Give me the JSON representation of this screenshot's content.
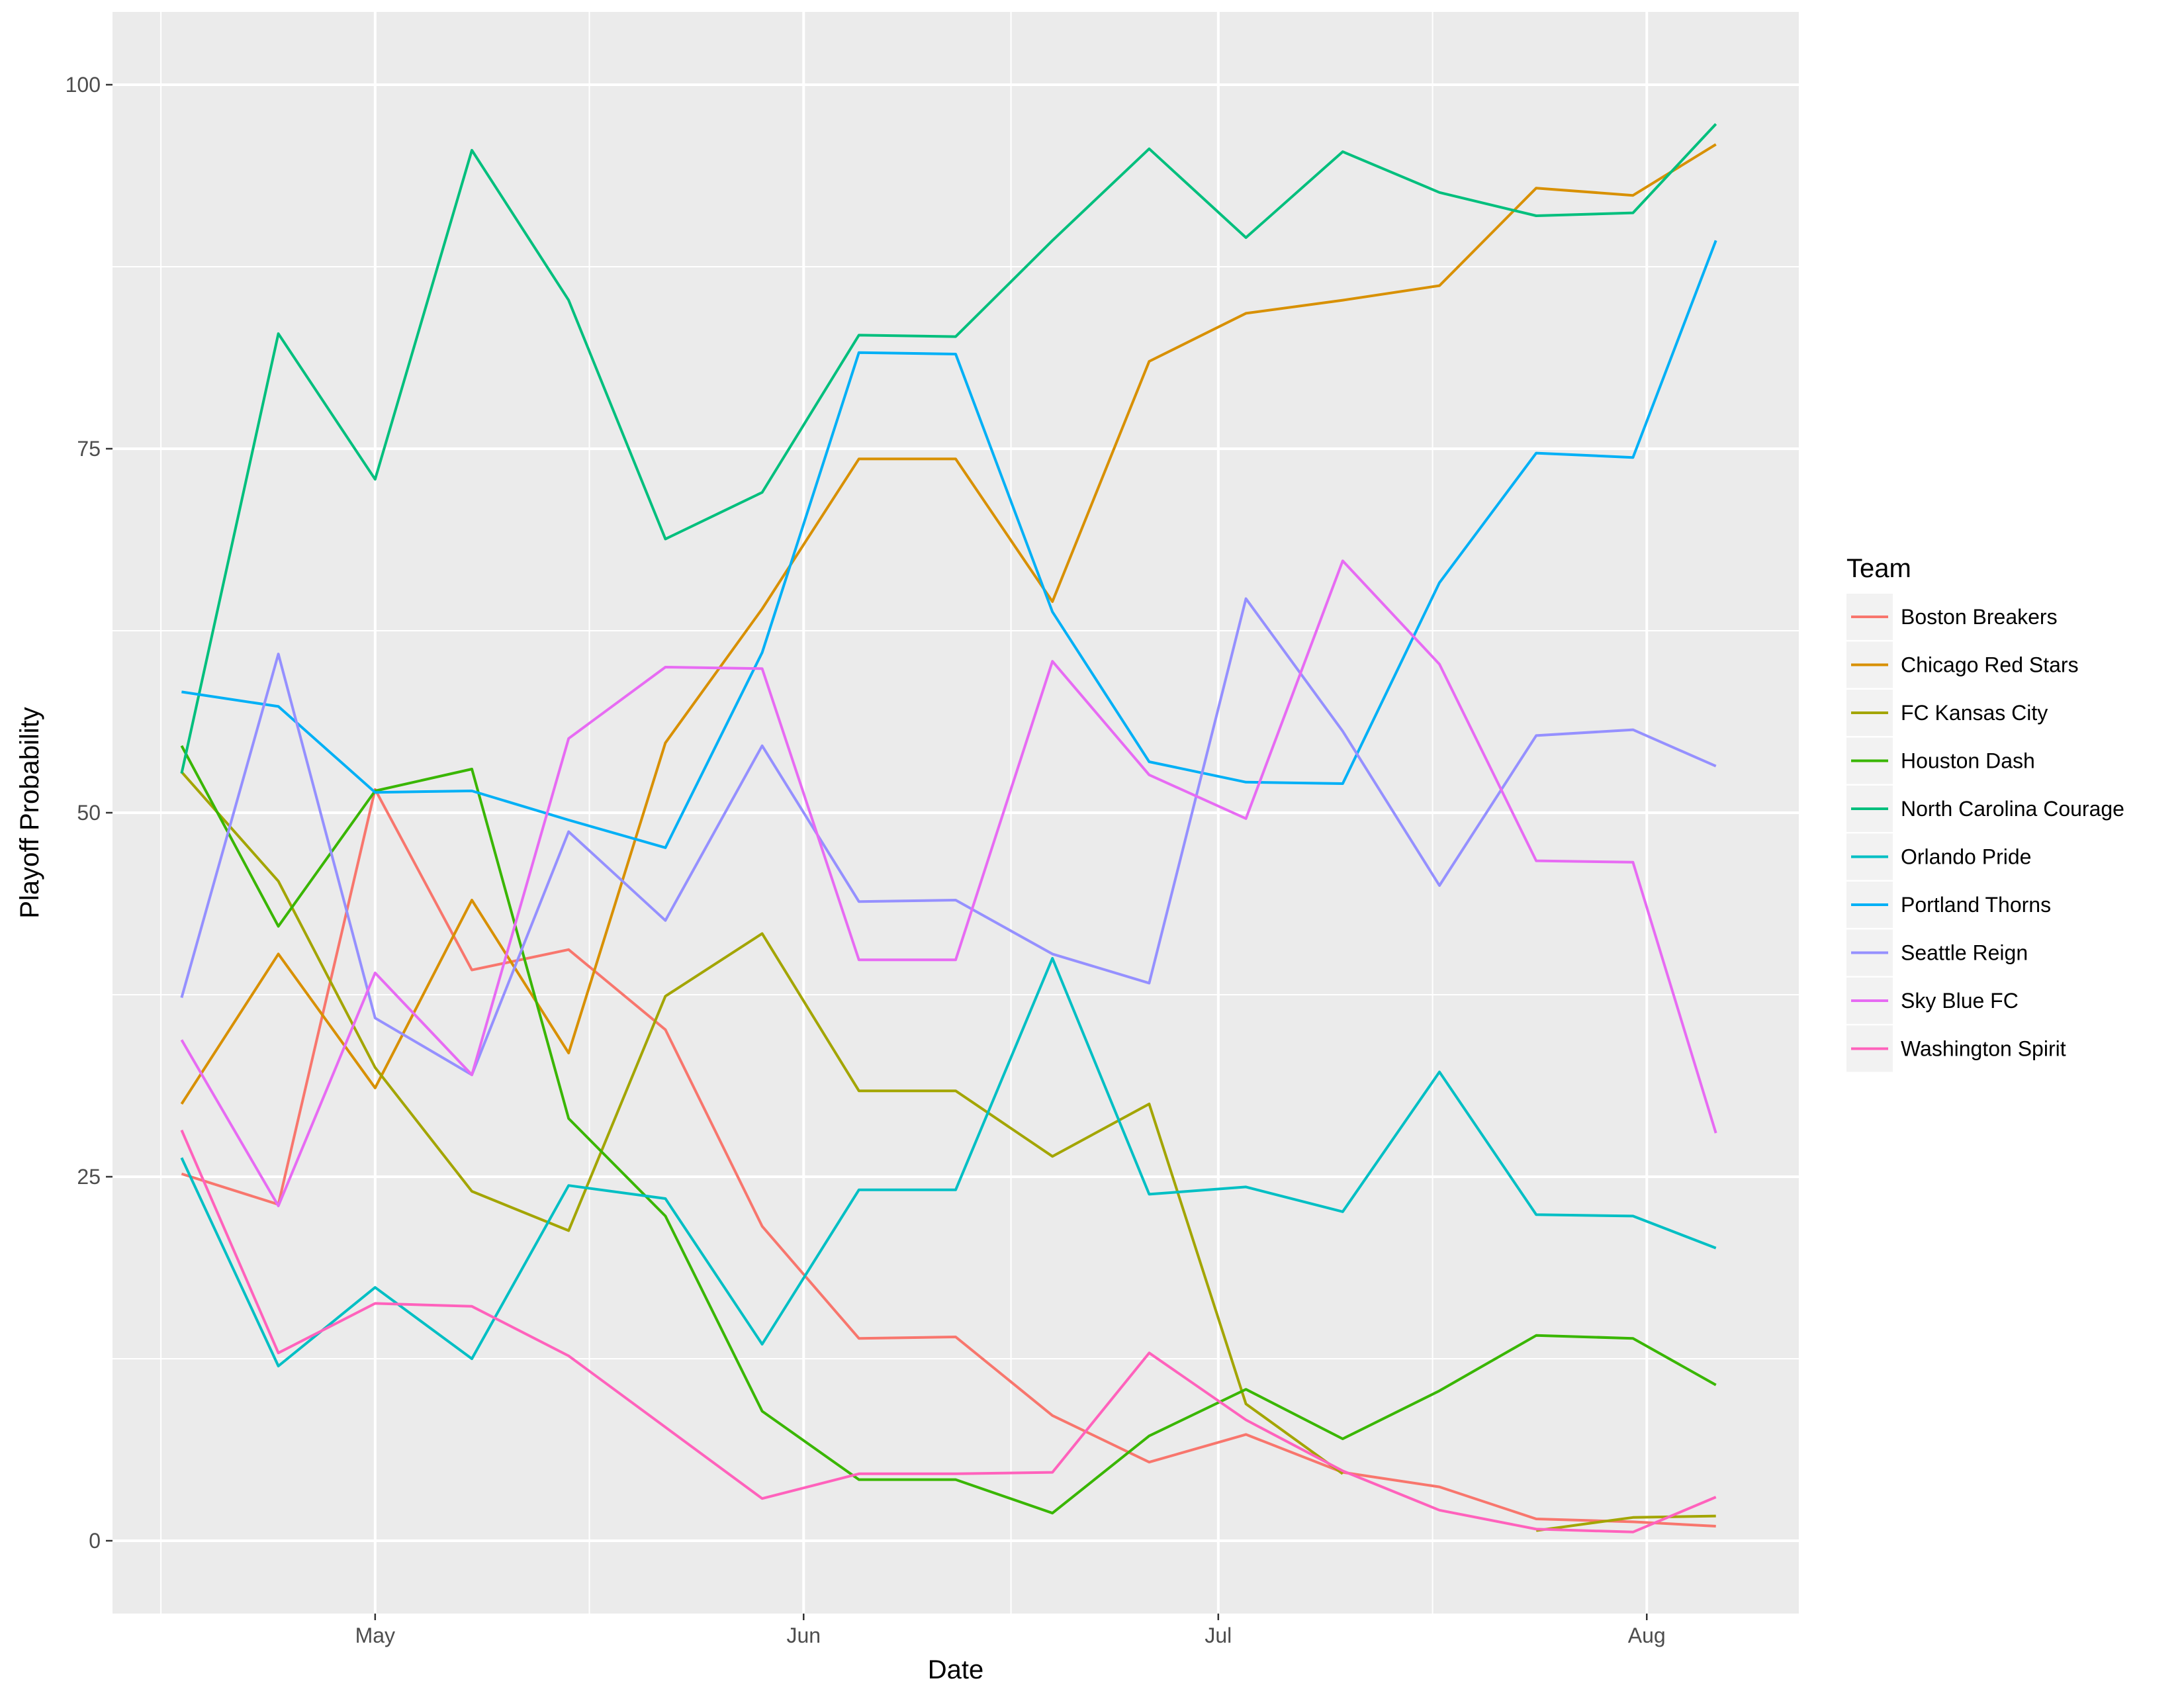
{
  "chart_data": {
    "type": "line",
    "xlabel": "Date",
    "ylabel": "Playoff Probability",
    "x_tick_labels": [
      "May",
      "Jun",
      "Jul",
      "Aug"
    ],
    "x_tick_dates": [
      "2017-05-01",
      "2017-06-01",
      "2017-07-01",
      "2017-08-01"
    ],
    "y_ticks": [
      0,
      25,
      50,
      75,
      100
    ],
    "ylim": [
      -5,
      105
    ],
    "xlim": [
      "2017-04-12",
      "2017-08-12"
    ],
    "grid": true,
    "legend": {
      "title": "Team",
      "position": "right"
    },
    "x": [
      "2017-04-17",
      "2017-04-24",
      "2017-05-01",
      "2017-05-08",
      "2017-05-15",
      "2017-05-22",
      "2017-05-29",
      "2017-06-05",
      "2017-06-12",
      "2017-06-19",
      "2017-06-26",
      "2017-07-03",
      "2017-07-10",
      "2017-07-17",
      "2017-07-24",
      "2017-07-31",
      "2017-08-06"
    ],
    "series": [
      {
        "name": "Boston Breakers",
        "color": "#F8766D",
        "values": [
          25.2,
          23.1,
          51.6,
          39.2,
          40.6,
          35.1,
          21.6,
          13.9,
          14.0,
          8.6,
          5.4,
          7.3,
          4.7,
          3.7,
          1.5,
          1.3,
          1.0
        ]
      },
      {
        "name": "Chicago Red Stars",
        "color": "#D89000",
        "values": [
          30.0,
          40.3,
          31.1,
          44.0,
          33.5,
          54.8,
          64.0,
          74.3,
          74.3,
          64.5,
          81.0,
          84.3,
          85.2,
          86.2,
          92.9,
          92.4,
          95.9
        ]
      },
      {
        "name": "FC Kansas City",
        "color": "#A3A500",
        "values": [
          52.8,
          45.3,
          32.5,
          24.0,
          21.3,
          37.4,
          41.7,
          30.9,
          30.9,
          26.4,
          30.0,
          9.4,
          4.6,
          null,
          0.7,
          1.6,
          1.7
        ]
      },
      {
        "name": "Houston Dash",
        "color": "#39B600",
        "values": [
          54.6,
          42.2,
          51.5,
          53.0,
          29.0,
          22.3,
          8.9,
          4.2,
          4.2,
          1.9,
          7.2,
          10.4,
          7.0,
          10.3,
          14.1,
          13.9,
          10.7
        ]
      },
      {
        "name": "North Carolina Courage",
        "color": "#00BF7D",
        "values": [
          52.7,
          82.9,
          72.9,
          95.5,
          85.2,
          68.8,
          72.0,
          82.8,
          82.7,
          89.3,
          95.6,
          89.5,
          95.4,
          92.6,
          91.0,
          91.2,
          97.3
        ]
      },
      {
        "name": "Orlando Pride",
        "color": "#00BFC4",
        "values": [
          26.3,
          12.0,
          17.4,
          12.5,
          24.4,
          23.5,
          13.5,
          24.1,
          24.1,
          40.0,
          23.8,
          24.3,
          22.6,
          32.2,
          22.4,
          22.3,
          20.1
        ]
      },
      {
        "name": "Portland Thorns",
        "color": "#00B0F6",
        "values": [
          58.3,
          57.3,
          51.4,
          51.5,
          49.5,
          47.6,
          61.0,
          81.6,
          81.5,
          63.8,
          53.5,
          52.1,
          52.0,
          65.8,
          74.7,
          74.4,
          89.3
        ]
      },
      {
        "name": "Seattle Reign",
        "color": "#9590FF",
        "values": [
          37.3,
          60.9,
          35.9,
          32.0,
          48.7,
          42.6,
          54.6,
          43.9,
          44.0,
          40.3,
          38.3,
          64.7,
          55.6,
          45.0,
          55.3,
          55.7,
          53.2
        ]
      },
      {
        "name": "Sky Blue FC",
        "color": "#E76BF3",
        "values": [
          34.4,
          23.0,
          39.0,
          32.0,
          55.1,
          60.0,
          59.9,
          39.9,
          39.9,
          60.4,
          52.6,
          49.6,
          67.3,
          60.2,
          46.7,
          46.6,
          28.0
        ]
      },
      {
        "name": "Washington Spirit",
        "color": "#FF62BC",
        "values": [
          28.2,
          12.9,
          16.3,
          16.1,
          12.7,
          7.8,
          2.9,
          4.6,
          4.6,
          4.7,
          12.9,
          8.3,
          4.8,
          2.1,
          0.8,
          0.6,
          3.0
        ]
      }
    ]
  }
}
